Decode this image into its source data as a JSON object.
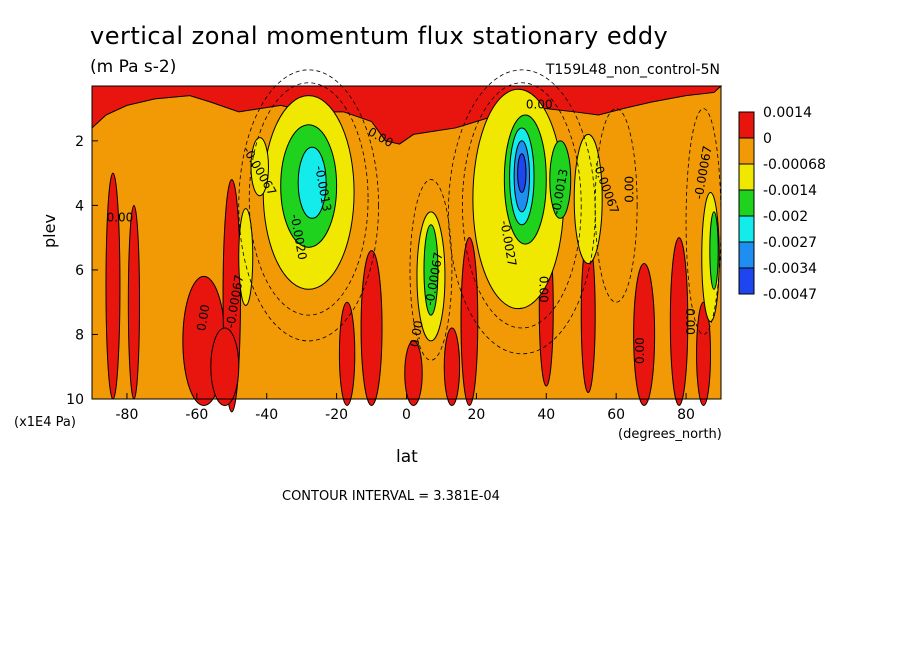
{
  "chart_data": {
    "type": "heatmap",
    "title": "vertical zonal momentum flux stationary eddy",
    "subtitle": "(m Pa s-2)",
    "run_label": "T159L48_non_control-5N",
    "xlabel": "lat",
    "xunit": "(degrees_north)",
    "ylabel": "plev",
    "yunit": "(x1E4 Pa)",
    "xlim": [
      -90,
      90
    ],
    "ylim": [
      10,
      0.3
    ],
    "xticks": [
      "-80",
      "-60",
      "-40",
      "-20",
      "0",
      "20",
      "40",
      "60",
      "80"
    ],
    "yticks": [
      "2",
      "4",
      "6",
      "8",
      "10"
    ],
    "contour_interval_text": "CONTOUR INTERVAL = 3.381E-04",
    "colorbar": [
      {
        "label": "0.0014",
        "color": "#e8150e"
      },
      {
        "label": "0",
        "color": "#f29a06"
      },
      {
        "label": "-0.00068",
        "color": "#f0e800"
      },
      {
        "label": "-0.0014",
        "color": "#1ed21e"
      },
      {
        "label": "-0.002",
        "color": "#14ebeb"
      },
      {
        "label": "-0.0027",
        "color": "#1e8ff0"
      },
      {
        "label": "-0.0034",
        "color": "#1e46f0"
      },
      {
        "label": "-0.0047",
        "color": ""
      }
    ],
    "contour_labels": [
      "0.00",
      "-0.00067",
      "-0.0013",
      "-0.0020",
      "-0.0027"
    ],
    "features": [
      {
        "lat": -27,
        "plev": [
          2.2,
          4.8
        ],
        "min_level": "-0.0027",
        "sign": "negative"
      },
      {
        "lat": 33,
        "plev": [
          2.0,
          4.6
        ],
        "min_level": "-0.0047",
        "sign": "negative"
      },
      {
        "lat": 44,
        "plev": [
          2.4,
          4.0
        ],
        "min_level": "-0.002",
        "sign": "negative"
      },
      {
        "lat": 7,
        "plev": [
          4.8,
          7.8
        ],
        "min_level": "-0.002",
        "sign": "negative"
      },
      {
        "lat": 88,
        "plev": [
          3.5,
          7.0
        ],
        "min_level": "-0.002",
        "sign": "negative"
      },
      {
        "lat": -55,
        "plev": [
          7.0,
          10
        ],
        "min_level": "0.0014",
        "sign": "positive"
      },
      {
        "lat": 0,
        "plev": [
          0.3,
          1.8
        ],
        "min_level": "0.0014",
        "sign": "positive"
      }
    ]
  }
}
